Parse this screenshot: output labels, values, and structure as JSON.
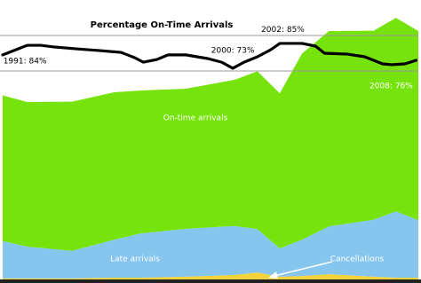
{
  "chart_data": [
    {
      "type": "area",
      "x": [
        1989.7,
        1990.8,
        1992.8,
        1994.7,
        1995.9,
        1997.9,
        2000.1,
        2001.1,
        2002.1,
        2003.1,
        2004.3,
        2006.3,
        2007.3,
        2008.3
      ],
      "xlim": [
        1989.7,
        2008.3
      ],
      "ylim": [
        0,
        8
      ],
      "series": [
        {
          "name": "Cancellations",
          "color": "#f2d43a",
          "values": [
            0.03,
            0.03,
            0.03,
            0.05,
            0.05,
            0.08,
            0.13,
            0.2,
            0.08,
            0.1,
            0.15,
            0.08,
            0.05,
            0.05
          ]
        },
        {
          "name": "Late arrivals",
          "color": "#86c5ee",
          "values": [
            1.07,
            0.91,
            0.79,
            1.09,
            1.27,
            1.37,
            1.4,
            1.24,
            0.81,
            1.04,
            1.37,
            1.63,
            1.9,
            1.65
          ]
        },
        {
          "name": "On-time arrivals",
          "color": "#77e30c",
          "values": [
            4.17,
            4.14,
            4.27,
            4.22,
            4.09,
            4.01,
            4.19,
            4.52,
            4.44,
            5.33,
            5.59,
            5.41,
            5.54,
            5.41
          ]
        }
      ]
    },
    {
      "type": "line",
      "title": "Percentage On-Time Arrivals",
      "color": "#000000",
      "x": [
        1989.7,
        1990.3,
        1990.8,
        1991.4,
        1992.0,
        1993.0,
        1994.0,
        1995.0,
        1995.6,
        1996.0,
        1996.6,
        1997.1,
        1997.9,
        1998.9,
        1999.5,
        2000.0,
        2000.5,
        2001.1,
        2001.7,
        2002.1,
        2003.1,
        2003.7,
        2004.1,
        2005.1,
        2005.9,
        2006.7,
        2007.1,
        2007.7,
        2008.2
      ],
      "values": [
        79.4,
        81.9,
        84.0,
        84.0,
        83.2,
        82.3,
        81.5,
        80.6,
        78.1,
        75.9,
        77.2,
        79.4,
        79.4,
        77.6,
        75.9,
        73.0,
        75.9,
        78.5,
        81.9,
        84.9,
        84.9,
        83.6,
        80.2,
        79.8,
        78.5,
        75.1,
        74.7,
        75.1,
        76.8
      ],
      "xlim": [
        1989.7,
        2008.3
      ],
      "ylim": [
        71.7,
        88.7
      ],
      "annotations": [
        {
          "x": 1991,
          "y": 84,
          "text": "1991: 84%"
        },
        {
          "x": 2000,
          "y": 73,
          "text": "2000: 73%"
        },
        {
          "x": 2002,
          "y": 85,
          "text": "2002: 85%"
        },
        {
          "x": 2008,
          "y": 76,
          "text": "2008: 76%"
        }
      ]
    }
  ]
}
